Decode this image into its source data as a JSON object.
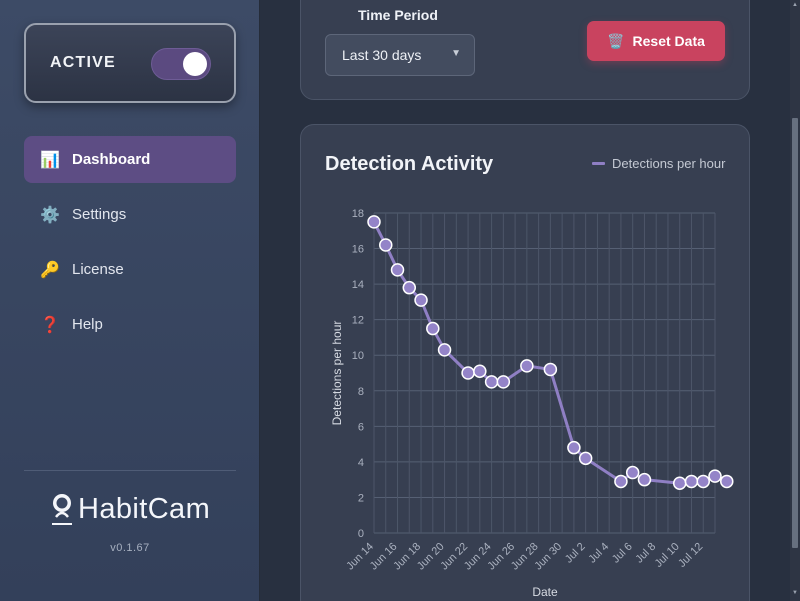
{
  "sidebar": {
    "status_label": "ACTIVE",
    "toggle_on": true,
    "items": [
      {
        "label": "Dashboard",
        "icon": "📊",
        "active": true
      },
      {
        "label": "Settings",
        "icon": "⚙️",
        "active": false
      },
      {
        "label": "License",
        "icon": "🔑",
        "active": false
      },
      {
        "label": "Help",
        "icon": "❓",
        "active": false
      }
    ],
    "brand": "HabitCam",
    "version": "v0.1.67"
  },
  "controls": {
    "period_label": "Time Period",
    "period_value": "Last 30 days",
    "reset_icon": "🗑️",
    "reset_label": "Reset Data"
  },
  "colors": {
    "accent": "#8f7fc4",
    "danger": "#c9435f",
    "active_nav": "#5d4d84"
  },
  "chart_data": {
    "type": "line",
    "title": "Detection Activity",
    "xlabel": "Date",
    "ylabel": "Detections per hour",
    "ylim": [
      0,
      18
    ],
    "yticks": [
      0,
      2,
      4,
      6,
      8,
      10,
      12,
      14,
      16,
      18
    ],
    "xlim": [
      "2025-06-14",
      "2025-07-13"
    ],
    "xticks": [
      "Jun 14",
      "Jun 16",
      "Jun 18",
      "Jun 20",
      "Jun 22",
      "Jun 24",
      "Jun 26",
      "Jun 28",
      "Jun 30",
      "Jul 2",
      "Jul 4",
      "Jul 6",
      "Jul 8",
      "Jul 10",
      "Jul 12"
    ],
    "grid": true,
    "legend_position": "top-right",
    "series": [
      {
        "name": "Detections per hour",
        "x": [
          "2025-06-14",
          "2025-06-15",
          "2025-06-16",
          "2025-06-17",
          "2025-06-18",
          "2025-06-19",
          "2025-06-20",
          "2025-06-22",
          "2025-06-23",
          "2025-06-24",
          "2025-06-25",
          "2025-06-27",
          "2025-06-29",
          "2025-07-01",
          "2025-07-02",
          "2025-07-05",
          "2025-07-06",
          "2025-07-07",
          "2025-07-10",
          "2025-07-11",
          "2025-07-12",
          "2025-07-13",
          "2025-07-14"
        ],
        "values": [
          17.5,
          16.2,
          14.8,
          13.8,
          13.1,
          11.5,
          10.3,
          9.0,
          9.1,
          8.5,
          8.5,
          9.4,
          9.2,
          4.8,
          4.2,
          2.9,
          3.4,
          3.0,
          2.8,
          2.9,
          2.9,
          3.2,
          2.9
        ]
      }
    ]
  }
}
